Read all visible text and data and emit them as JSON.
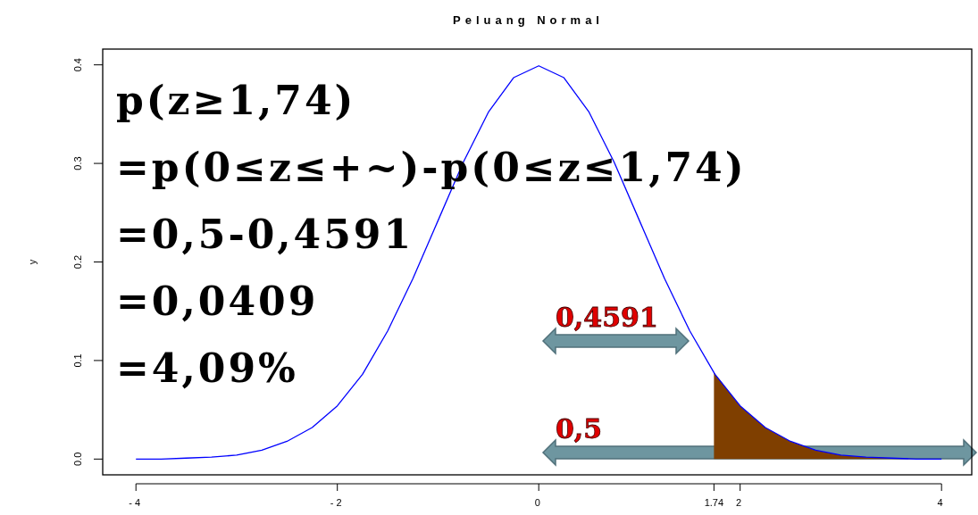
{
  "chart_data": {
    "type": "line",
    "title": "Peluang Normal",
    "ylabel": "y",
    "xlim": [
      -4.33,
      4.3
    ],
    "ylim": [
      -0.016,
      0.416
    ],
    "xticks": [
      -4,
      -2,
      0,
      {
        "value": 1.74,
        "label": "1.74"
      },
      2,
      4
    ],
    "yticks": [
      {
        "value": 0,
        "label": "0.0"
      },
      0.1,
      0.2,
      0.3,
      0.4
    ],
    "grid": false,
    "series": [
      {
        "color": "#0000ff",
        "x": [
          -4,
          -3.75,
          -3.5,
          -3.25,
          -3,
          -2.75,
          -2.5,
          -2.25,
          -2,
          -1.75,
          -1.5,
          -1.25,
          -1,
          -0.75,
          -0.5,
          -0.25,
          0,
          0.25,
          0.5,
          0.75,
          1,
          1.25,
          1.5,
          1.75,
          2,
          2.25,
          2.5,
          2.75,
          3,
          3.25,
          3.5,
          3.75,
          4
        ],
        "values": [
          0.0,
          0.0,
          0.001,
          0.002,
          0.004,
          0.009,
          0.018,
          0.032,
          0.054,
          0.086,
          0.13,
          0.183,
          0.242,
          0.301,
          0.352,
          0.387,
          0.399,
          0.387,
          0.352,
          0.301,
          0.242,
          0.183,
          0.13,
          0.086,
          0.054,
          0.032,
          0.018,
          0.009,
          0.004,
          0.002,
          0.001,
          0.0,
          0.0
        ]
      },
      {
        "type": "area",
        "color": "#7f3f00",
        "x": [
          1.74,
          2,
          2.25,
          2.5,
          2.75,
          3,
          3.25,
          3.5,
          3.75,
          4,
          4.3
        ],
        "values": [
          0.088,
          0.054,
          0.032,
          0.018,
          0.009,
          0.004,
          0.002,
          0.001,
          0.0,
          0.0,
          0.0
        ]
      }
    ],
    "annotations": [
      "p(z≥1,74)",
      "=p(0≤z≤+~)-p(0≤z≤1,74)",
      "=0,5-0,4591",
      "=0,0409",
      "=4,09%",
      "0,4591",
      "0,5"
    ]
  }
}
